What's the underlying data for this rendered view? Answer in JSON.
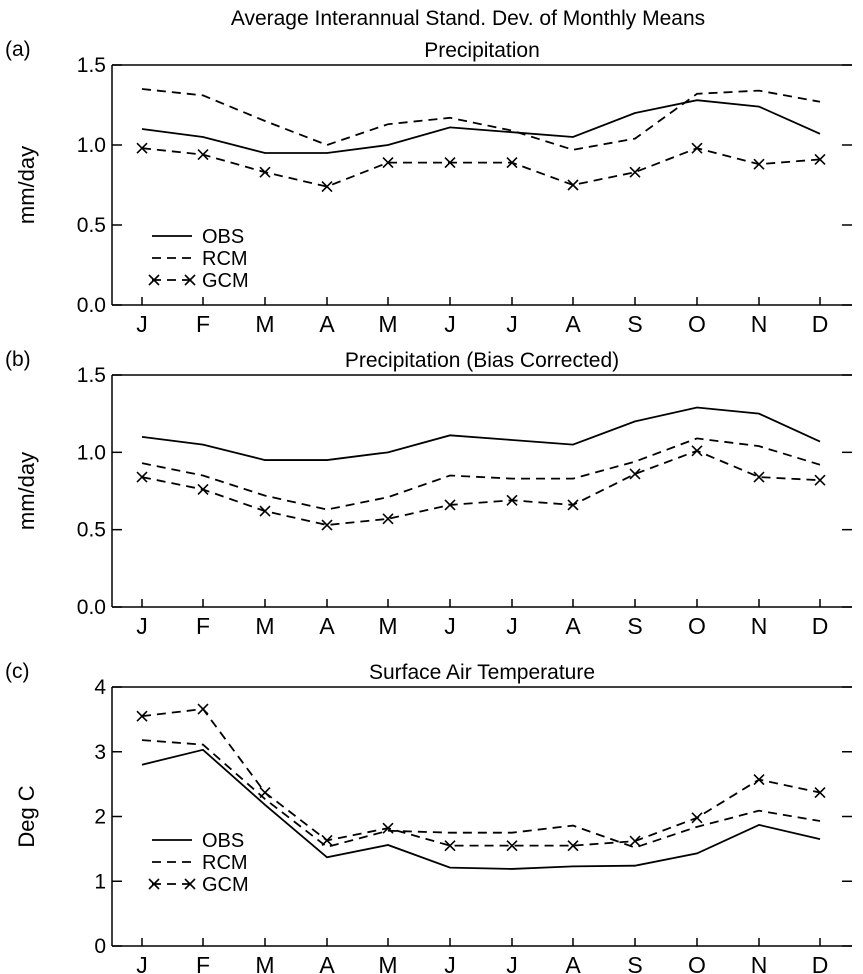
{
  "figure_title": "Average Interannual Stand. Dev. of Monthly Means",
  "chart_data": [
    {
      "type": "line",
      "panel_label": "(a)",
      "title": "Precipitation",
      "ylabel": "mm/day",
      "xlabel": "",
      "ylim": [
        0,
        1.5
      ],
      "yticks": [
        "0.0",
        "0.5",
        "1.0",
        "1.5"
      ],
      "categories": [
        "J",
        "F",
        "M",
        "A",
        "M",
        "J",
        "J",
        "A",
        "S",
        "O",
        "N",
        "D"
      ],
      "legend": {
        "placement": "lower-left"
      },
      "series": [
        {
          "name": "OBS",
          "style": "solid",
          "values": [
            1.1,
            1.05,
            0.95,
            0.95,
            1.0,
            1.11,
            1.08,
            1.05,
            1.2,
            1.28,
            1.24,
            1.07
          ]
        },
        {
          "name": "RCM",
          "style": "dashed",
          "values": [
            1.35,
            1.31,
            1.15,
            1.0,
            1.13,
            1.17,
            1.09,
            0.97,
            1.04,
            1.32,
            1.34,
            1.27
          ]
        },
        {
          "name": "GCM",
          "style": "dashed-x",
          "values": [
            0.98,
            0.94,
            0.83,
            0.74,
            0.89,
            0.89,
            0.89,
            0.75,
            0.83,
            0.98,
            0.88,
            0.91
          ]
        }
      ]
    },
    {
      "type": "line",
      "panel_label": "(b)",
      "title": "Precipitation (Bias Corrected)",
      "ylabel": "mm/day",
      "xlabel": "",
      "ylim": [
        0,
        1.5
      ],
      "yticks": [
        "0.0",
        "0.5",
        "1.0",
        "1.5"
      ],
      "categories": [
        "J",
        "F",
        "M",
        "A",
        "M",
        "J",
        "J",
        "A",
        "S",
        "O",
        "N",
        "D"
      ],
      "legend": {
        "placement": "none"
      },
      "series": [
        {
          "name": "",
          "style": "solid",
          "values": [
            1.1,
            1.05,
            0.95,
            0.95,
            1.0,
            1.11,
            1.08,
            1.05,
            1.2,
            1.29,
            1.25,
            1.07
          ]
        },
        {
          "name": "",
          "style": "dashed",
          "values": [
            0.93,
            0.85,
            0.72,
            0.63,
            0.71,
            0.85,
            0.83,
            0.83,
            0.94,
            1.09,
            1.04,
            0.92
          ]
        },
        {
          "name": "",
          "style": "dashed-x",
          "values": [
            0.84,
            0.76,
            0.62,
            0.53,
            0.57,
            0.66,
            0.69,
            0.66,
            0.86,
            1.01,
            0.84,
            0.82
          ]
        }
      ]
    },
    {
      "type": "line",
      "panel_label": "(c)",
      "title": "Surface Air Temperature",
      "ylabel": "Deg C",
      "xlabel": "",
      "ylim": [
        0,
        4
      ],
      "yticks": [
        "0",
        "1",
        "2",
        "3",
        "4"
      ],
      "categories": [
        "J",
        "F",
        "M",
        "A",
        "M",
        "J",
        "J",
        "A",
        "S",
        "O",
        "N",
        "D"
      ],
      "legend": {
        "placement": "lower-left"
      },
      "series": [
        {
          "name": "OBS",
          "style": "solid",
          "values": [
            2.8,
            3.03,
            2.18,
            1.37,
            1.56,
            1.21,
            1.19,
            1.23,
            1.24,
            1.43,
            1.87,
            1.65
          ]
        },
        {
          "name": "RCM",
          "style": "dashed",
          "values": [
            3.18,
            3.11,
            2.27,
            1.53,
            1.78,
            1.75,
            1.75,
            1.86,
            1.52,
            1.84,
            2.09,
            1.93
          ]
        },
        {
          "name": "GCM",
          "style": "dashed-x",
          "values": [
            3.55,
            3.66,
            2.37,
            1.63,
            1.82,
            1.55,
            1.55,
            1.55,
            1.62,
            1.98,
            2.57,
            2.37
          ]
        }
      ]
    }
  ]
}
